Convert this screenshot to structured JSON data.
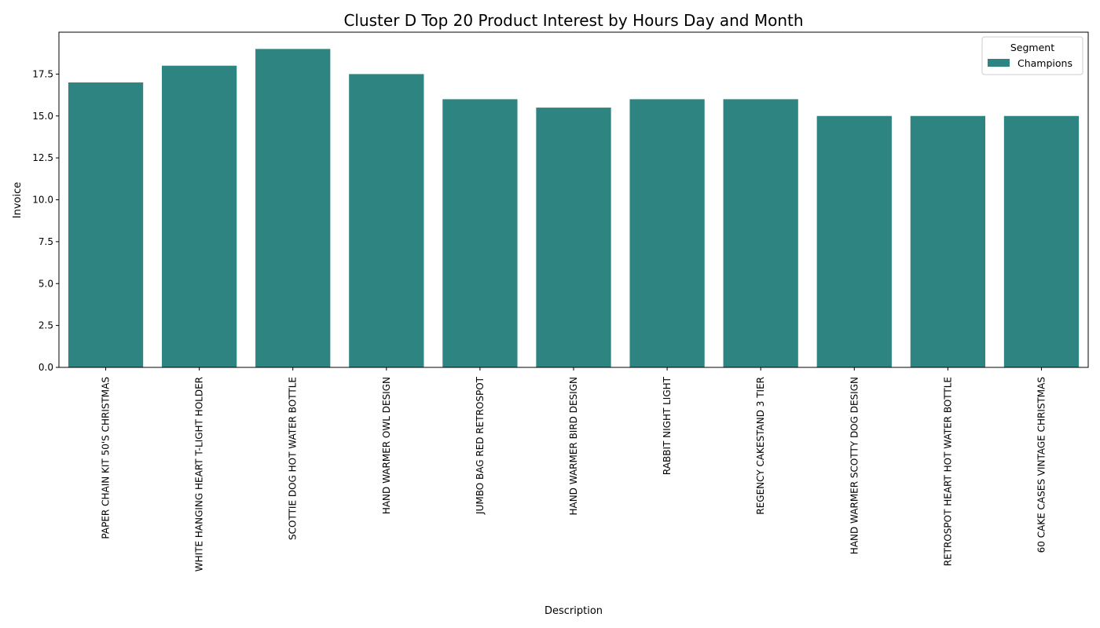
{
  "chart_data": {
    "type": "bar",
    "title": "Cluster D Top 20 Product Interest by Hours Day and Month",
    "xlabel": "Description",
    "ylabel": "Invoice",
    "ylim": [
      0,
      20
    ],
    "yticks": [
      "0.0",
      "2.5",
      "5.0",
      "7.5",
      "10.0",
      "12.5",
      "15.0",
      "17.5"
    ],
    "ytick_values": [
      0,
      2.5,
      5,
      7.5,
      10,
      12.5,
      15,
      17.5
    ],
    "categories": [
      "PAPER CHAIN KIT 50'S CHRISTMAS",
      "WHITE HANGING HEART T-LIGHT HOLDER",
      "SCOTTIE DOG HOT WATER BOTTLE",
      "HAND WARMER OWL DESIGN",
      "JUMBO BAG RED RETROSPOT",
      "HAND WARMER BIRD DESIGN",
      "RABBIT NIGHT LIGHT",
      "REGENCY CAKESTAND 3 TIER",
      "HAND WARMER SCOTTY DOG DESIGN",
      "RETROSPOT HEART HOT WATER BOTTLE",
      "60 CAKE CASES VINTAGE CHRISTMAS"
    ],
    "series": [
      {
        "name": "Champions",
        "color": "#2e8480",
        "values": [
          17,
          18,
          19,
          17.5,
          16,
          15.5,
          16,
          16,
          15,
          15,
          15
        ]
      }
    ],
    "legend": {
      "title": "Segment",
      "placement": "top-right"
    },
    "grid": false
  }
}
